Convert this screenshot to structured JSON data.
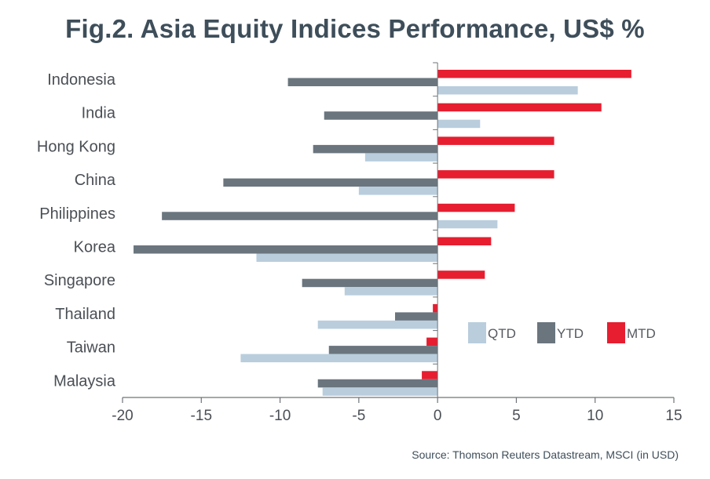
{
  "colors": {
    "QTD": "#b9cddd",
    "YTD": "#6a757e",
    "MTD": "#e61e30",
    "axis": "#6d7378",
    "text": "#4a4f55"
  },
  "chart_data": {
    "type": "bar",
    "orientation": "horizontal",
    "title": "Fig.2. Asia Equity Indices Performance, US$ %",
    "source": "Source: Thomson Reuters Datastream, MSCI (in USD)",
    "categories": [
      "Indonesia",
      "India",
      "Hong Kong",
      "China",
      "Philippines",
      "Korea",
      "Singapore",
      "Thailand",
      "Taiwan",
      "Malaysia"
    ],
    "series": [
      {
        "name": "MTD",
        "values": [
          12.3,
          10.4,
          7.4,
          7.4,
          4.9,
          3.4,
          3.0,
          -0.3,
          -0.7,
          -1.0
        ]
      },
      {
        "name": "YTD",
        "values": [
          -9.5,
          -7.2,
          -7.9,
          -13.6,
          -17.5,
          -19.3,
          -8.6,
          -2.7,
          -6.9,
          -7.6
        ]
      },
      {
        "name": "QTD",
        "values": [
          8.9,
          2.7,
          -4.6,
          -5.0,
          3.8,
          -11.5,
          -5.9,
          -7.6,
          -12.5,
          -7.3
        ]
      }
    ],
    "legend": [
      "QTD",
      "YTD",
      "MTD"
    ],
    "legend_position": "lower-right",
    "xlim": [
      -20,
      15
    ],
    "xticks": [
      -20,
      -15,
      -10,
      -5,
      0,
      5,
      10,
      15
    ],
    "xlabel": "",
    "ylabel": "",
    "grid": false
  }
}
